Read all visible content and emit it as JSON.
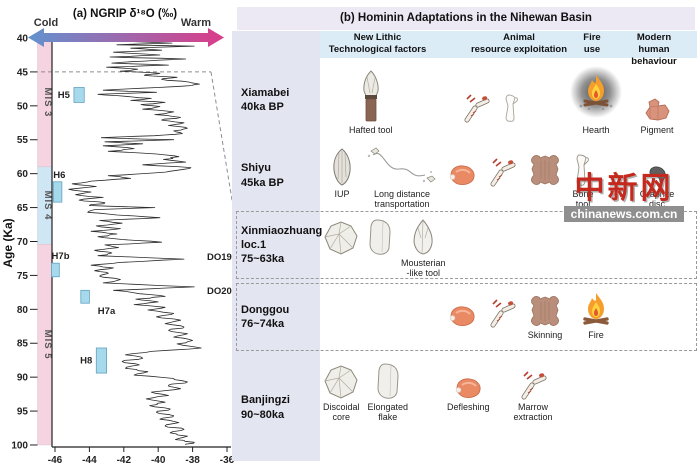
{
  "panel_a": {
    "title": "(a) NGRIP δ¹⁸O (‰)",
    "cold_label": "Cold",
    "warm_label": "Warm",
    "y_axis_label": "Age (Ka)",
    "arrow_colors": {
      "cold": "#6292cf",
      "warm": "#dc3c88"
    }
  },
  "chart_data": {
    "type": "line",
    "title": "(a) NGRIP δ¹⁸O (‰)",
    "xlabel": "δ¹⁸O (‰)",
    "ylabel": "Age (Ka)",
    "x_ticks": [
      -46,
      -44,
      -42,
      -40,
      -38,
      -36
    ],
    "y_ticks": [
      40,
      45,
      50,
      55,
      60,
      65,
      70,
      75,
      80,
      85,
      90,
      95,
      100
    ],
    "xlim": [
      -46.3,
      -35.8
    ],
    "ylim": [
      40,
      100
    ],
    "grid": false,
    "orientation": "age-increases-downward",
    "line_color": "#2b2b2b",
    "series": [
      {
        "name": "NGRIP δ18O",
        "points": [
          [
            40,
            -40.2
          ],
          [
            40.25,
            -38.7
          ],
          [
            40.5,
            -41.8
          ],
          [
            40.75,
            -39.2
          ],
          [
            41,
            -42.4
          ],
          [
            41.2,
            -37.9
          ],
          [
            41.5,
            -41.6
          ],
          [
            41.8,
            -39.8
          ],
          [
            42.1,
            -42.6
          ],
          [
            42.5,
            -39.9
          ],
          [
            42.8,
            -42.8
          ],
          [
            43.1,
            -38.4
          ],
          [
            43.4,
            -40.8
          ],
          [
            43.7,
            -42.7
          ],
          [
            44,
            -39.4
          ],
          [
            44.3,
            -43
          ],
          [
            44.6,
            -41.2
          ],
          [
            44.9,
            -42.2
          ],
          [
            45.2,
            -39.9
          ],
          [
            45.5,
            -40.8
          ],
          [
            45.8,
            -38.9
          ],
          [
            46.1,
            -39.8
          ],
          [
            46.5,
            -38.2
          ],
          [
            46.8,
            -37.6
          ],
          [
            47.1,
            -38.6
          ],
          [
            47.4,
            -40.9
          ],
          [
            47.7,
            -43.2
          ],
          [
            48,
            -40.1
          ],
          [
            48.3,
            -43.5
          ],
          [
            48.6,
            -41.9
          ],
          [
            48.9,
            -40.4
          ],
          [
            49.2,
            -41.6
          ],
          [
            49.5,
            -39.6
          ],
          [
            49.8,
            -41
          ],
          [
            50.1,
            -39.9
          ],
          [
            50.5,
            -40.9
          ],
          [
            50.9,
            -39.1
          ],
          [
            51.3,
            -40.2
          ],
          [
            51.7,
            -38.7
          ],
          [
            52.1,
            -39.8
          ],
          [
            52.5,
            -38.5
          ],
          [
            52.9,
            -39.4
          ],
          [
            53.3,
            -38.3
          ],
          [
            53.7,
            -39.1
          ],
          [
            54.1,
            -38.6
          ],
          [
            54.4,
            -40.2
          ],
          [
            54.7,
            -43.3
          ],
          [
            55,
            -39.1
          ],
          [
            55.3,
            -43.1
          ],
          [
            55.6,
            -40.9
          ],
          [
            55.9,
            -43.2
          ],
          [
            56.3,
            -41.4
          ],
          [
            56.7,
            -42.9
          ],
          [
            57.1,
            -40.1
          ],
          [
            57.5,
            -38.8
          ],
          [
            57.9,
            -39.7
          ],
          [
            58.3,
            -38.4
          ],
          [
            58.7,
            -40.9
          ],
          [
            59.1,
            -38.1
          ],
          [
            59.5,
            -38.9
          ],
          [
            59.9,
            -40.3
          ],
          [
            60.3,
            -42.9
          ],
          [
            60.7,
            -41.6
          ],
          [
            61.1,
            -43.9
          ],
          [
            61.5,
            -45
          ],
          [
            61.9,
            -43.6
          ],
          [
            62.3,
            -45.2
          ],
          [
            62.7,
            -43.9
          ],
          [
            63.1,
            -44.8
          ],
          [
            63.5,
            -43.2
          ],
          [
            63.9,
            -44.6
          ],
          [
            64.3,
            -43.1
          ],
          [
            64.7,
            -44
          ],
          [
            65,
            -40.2
          ],
          [
            65.3,
            -43.7
          ],
          [
            65.7,
            -44.1
          ],
          [
            66.1,
            -42.4
          ],
          [
            66.5,
            -39.9
          ],
          [
            66.9,
            -43.4
          ],
          [
            67.3,
            -42.1
          ],
          [
            67.7,
            -43.6
          ],
          [
            68.1,
            -42.2
          ],
          [
            68.5,
            -43.9
          ],
          [
            68.9,
            -42.4
          ],
          [
            69.3,
            -43.5
          ],
          [
            69.7,
            -42.1
          ],
          [
            70.1,
            -39.8
          ],
          [
            70.5,
            -43.1
          ],
          [
            70.9,
            -42.3
          ],
          [
            71.3,
            -43.7
          ],
          [
            71.7,
            -42.7
          ],
          [
            72.1,
            -43.5
          ],
          [
            72.6,
            -38.5
          ],
          [
            73.1,
            -42.3
          ],
          [
            73.5,
            -43.9
          ],
          [
            73.9,
            -42.6
          ],
          [
            74.3,
            -43.7
          ],
          [
            74.7,
            -42.9
          ],
          [
            75.1,
            -43.4
          ],
          [
            75.6,
            -42.2
          ],
          [
            76.1,
            -43.2
          ],
          [
            76.7,
            -37.9
          ],
          [
            77.2,
            -42.6
          ],
          [
            77.7,
            -41.1
          ],
          [
            78.1,
            -39.6
          ],
          [
            78.5,
            -41.3
          ],
          [
            78.9,
            -40
          ],
          [
            79.3,
            -41.4
          ],
          [
            79.7,
            -39.6
          ],
          [
            80.1,
            -40.6
          ],
          [
            80.6,
            -39.1
          ],
          [
            81.1,
            -40.1
          ],
          [
            81.6,
            -38.7
          ],
          [
            82.1,
            -39.6
          ],
          [
            82.6,
            -38.5
          ],
          [
            83.1,
            -39.4
          ],
          [
            83.6,
            -38.3
          ],
          [
            84.1,
            -39.1
          ],
          [
            84.6,
            -38
          ],
          [
            85.1,
            -38.9
          ],
          [
            85.7,
            -37.5
          ],
          [
            86.2,
            -40.4
          ],
          [
            86.7,
            -41.9
          ],
          [
            87.2,
            -40.9
          ],
          [
            87.7,
            -42.1
          ],
          [
            88.2,
            -41.1
          ],
          [
            88.7,
            -41.9
          ],
          [
            89.2,
            -40.6
          ],
          [
            89.7,
            -41.4
          ],
          [
            90.2,
            -39.1
          ],
          [
            90.7,
            -38.3
          ],
          [
            91.2,
            -39.4
          ],
          [
            91.7,
            -38.7
          ],
          [
            92.2,
            -40.4
          ],
          [
            92.7,
            -39.4
          ],
          [
            93.2,
            -40.7
          ],
          [
            93.7,
            -39.6
          ],
          [
            94.2,
            -40.5
          ],
          [
            94.7,
            -39.3
          ],
          [
            95.2,
            -40.1
          ],
          [
            95.7,
            -39.1
          ],
          [
            96.2,
            -39.9
          ],
          [
            96.7,
            -38.8
          ],
          [
            97.2,
            -39.6
          ],
          [
            97.7,
            -38.5
          ],
          [
            98.2,
            -39.3
          ],
          [
            98.7,
            -38.3
          ],
          [
            99.2,
            -39
          ],
          [
            99.6,
            -37.9
          ],
          [
            100,
            -38.4
          ]
        ]
      }
    ],
    "mis_zones": [
      {
        "label": "MIS 3",
        "from": 40,
        "to": 59,
        "color": "#f6d3e1"
      },
      {
        "label": "MIS 4",
        "from": 59,
        "to": 70.4,
        "color": "#cfe7f4"
      },
      {
        "label": "MIS 5",
        "from": 70.4,
        "to": 100,
        "color": "#f6d3e1"
      }
    ],
    "h_events": [
      {
        "label": "H5",
        "age_from": 47.3,
        "age_to": 49.5,
        "d18o_from": -44.9,
        "d18o_to": -44.3,
        "label_pos": "left"
      },
      {
        "label": "H6",
        "age_from": 61.2,
        "age_to": 64.2,
        "d18o_from": -46.1,
        "d18o_to": -45.6,
        "label_pos": "above"
      },
      {
        "label": "H7b",
        "age_from": 73.2,
        "age_to": 75.2,
        "d18o_from": -46.2,
        "d18o_to": -45.75,
        "label_pos": "above"
      },
      {
        "label": "H7a",
        "age_from": 77.2,
        "age_to": 79.1,
        "d18o_from": -44.5,
        "d18o_to": -44.0,
        "label_pos": "below-right"
      },
      {
        "label": "H8",
        "age_from": 85.7,
        "age_to": 89.4,
        "d18o_from": -43.6,
        "d18o_to": -43.0,
        "label_pos": "left"
      }
    ],
    "h_event_color": "#a6d9ec",
    "do_events": [
      {
        "label": "DO19",
        "age": 72.3
      },
      {
        "label": "DO20",
        "age": 77.3
      }
    ],
    "connector_age": 45
  },
  "panel_b": {
    "title": "(b) Hominin Adaptations in the Nihewan Basin",
    "columns": [
      {
        "id": "lithic",
        "line1": "New Lithic",
        "line2": "Technological factors"
      },
      {
        "id": "animal",
        "line1": "Animal",
        "line2": "resource exploitation"
      },
      {
        "id": "fire",
        "line1": "Fire",
        "line2": "use"
      },
      {
        "id": "modern",
        "line1": "Modern",
        "line2": "human behaviour"
      }
    ],
    "rows": [
      {
        "site_lines": [
          "Xiamabei",
          "40ka BP"
        ],
        "dashed": false,
        "items": {
          "lithic": [
            {
              "icon": "hafted-tool",
              "label": "Hafted tool"
            }
          ],
          "animal": [
            {
              "icon": "cut-bones",
              "label": ""
            },
            {
              "icon": "plain-bone",
              "label": ""
            }
          ],
          "fire": [
            {
              "icon": "hearth",
              "label": "Hearth"
            }
          ],
          "modern": [
            {
              "icon": "pigment",
              "label": "Pigment"
            }
          ]
        }
      },
      {
        "site_lines": [
          "Shiyu",
          "45ka BP"
        ],
        "dashed": false,
        "items": {
          "lithic": [
            {
              "icon": "iup-blade",
              "label": "IUP"
            },
            {
              "icon": "transport-path",
              "label": "Long distance\ntransportation"
            }
          ],
          "animal": [
            {
              "icon": "meat",
              "label": ""
            },
            {
              "icon": "cut-bones",
              "label": ""
            },
            {
              "icon": "hide",
              "label": ""
            },
            {
              "icon": "bone-tool",
              "label": "Bone\ntool"
            }
          ],
          "fire": [],
          "modern": [
            {
              "icon": "graphite-disc",
              "label": "Graphite\ndisc"
            }
          ]
        }
      },
      {
        "site_lines": [
          "Xinmiaozhuang",
          "loc.1",
          "75~63ka"
        ],
        "dashed": true,
        "items": {
          "lithic": [
            {
              "icon": "discoidal-core",
              "label": ""
            },
            {
              "icon": "elongated-flake",
              "label": ""
            },
            {
              "icon": "mousterian-tool",
              "label": "Mousterian\n-like tool"
            }
          ],
          "animal": [],
          "fire": [],
          "modern": []
        }
      },
      {
        "site_lines": [
          "Donggou",
          "76~74ka"
        ],
        "dashed": true,
        "items": {
          "lithic": [],
          "animal": [
            {
              "icon": "meat",
              "label": ""
            },
            {
              "icon": "cut-bones",
              "label": ""
            },
            {
              "icon": "hide",
              "label": "Skinning"
            }
          ],
          "fire": [
            {
              "icon": "fire",
              "label": "Fire"
            }
          ],
          "modern": []
        }
      },
      {
        "site_lines": [
          "Banjingzi",
          "90~80ka"
        ],
        "dashed": false,
        "items": {
          "lithic": [
            {
              "icon": "discoidal-core",
              "label": "Discoidal\ncore"
            },
            {
              "icon": "elongated-flake",
              "label": "Elongated\nflake"
            }
          ],
          "animal": [
            {
              "icon": "meat",
              "label": "Defleshing"
            },
            {
              "icon": "cut-bones",
              "label": "Marrow\nextraction"
            }
          ],
          "fire": [],
          "modern": []
        }
      }
    ]
  },
  "watermark": {
    "logo_text": "中新网",
    "site_text": "chinanews.com.cn",
    "color": "#c5281c"
  }
}
